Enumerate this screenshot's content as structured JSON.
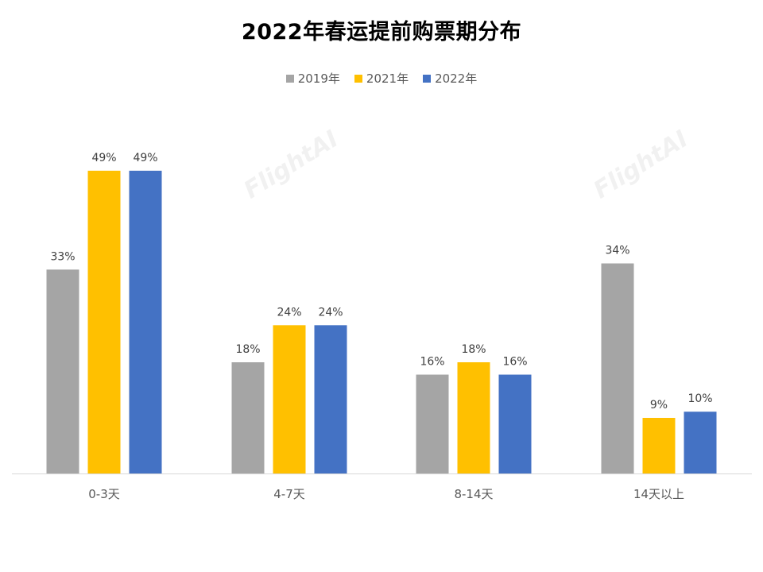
{
  "chart_data": {
    "type": "bar",
    "title": "2022年春运提前购票期分布",
    "categories": [
      "0-3天",
      "4-7天",
      "8-14天",
      "14天以上"
    ],
    "series": [
      {
        "name": "2019年",
        "color": "#A5A5A5",
        "values": [
          33,
          18,
          16,
          34
        ],
        "labels": [
          "33%",
          "18%",
          "16%",
          "34%"
        ]
      },
      {
        "name": "2021年",
        "color": "#FFC000",
        "values": [
          49,
          24,
          18,
          9
        ],
        "labels": [
          "49%",
          "24%",
          "18%",
          "9%"
        ]
      },
      {
        "name": "2022年",
        "color": "#4472C4",
        "values": [
          49,
          24,
          16,
          10
        ],
        "labels": [
          "49%",
          "24%",
          "16%",
          "10%"
        ]
      }
    ],
    "value_unit": "%",
    "ylim": [
      0,
      55
    ],
    "grid": false,
    "legend_position": "top",
    "xlabel": "",
    "ylabel": ""
  },
  "watermark": {
    "text": "FlightAI"
  }
}
